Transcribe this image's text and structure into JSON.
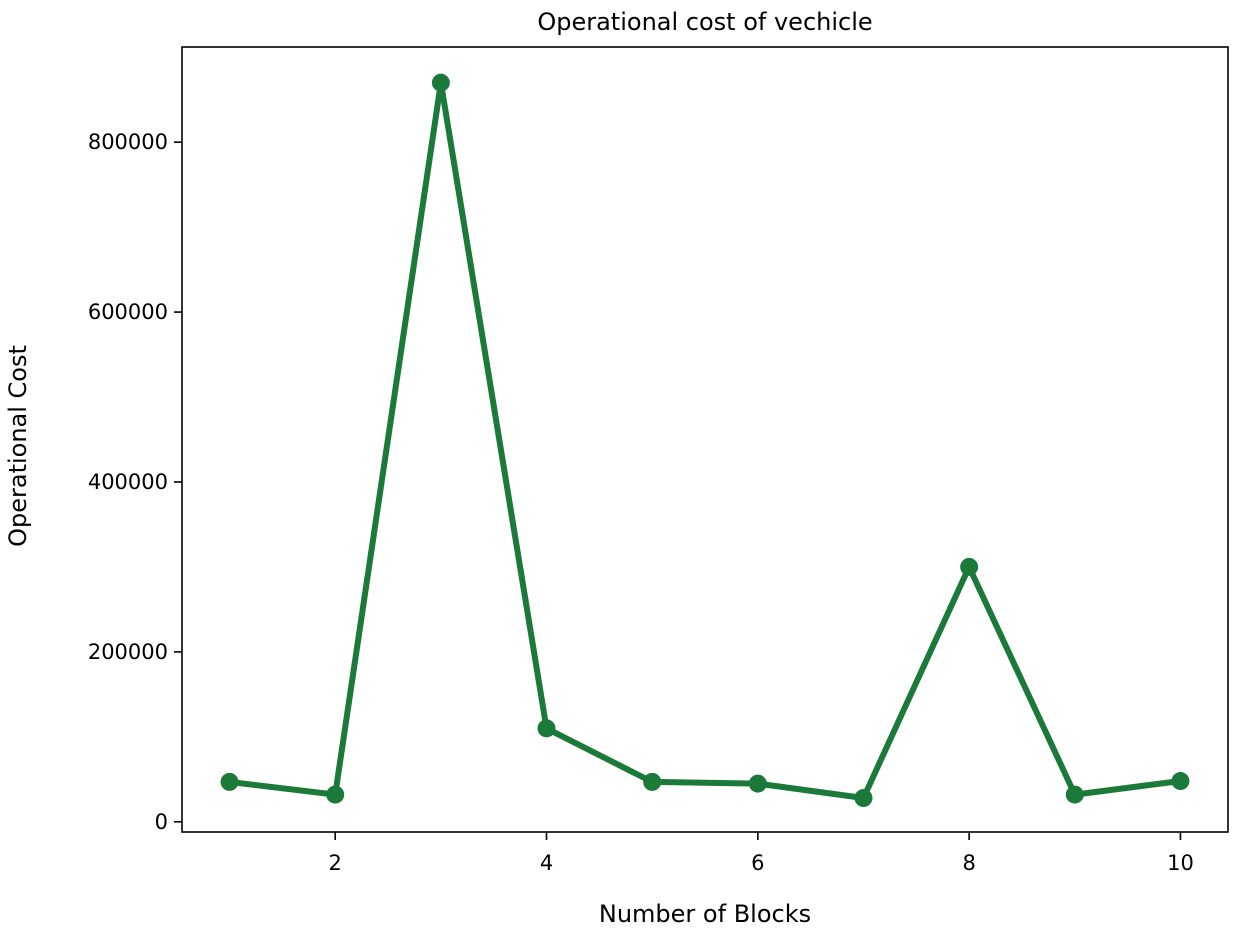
{
  "chart_data": {
    "type": "line",
    "title": "Operational cost of vechicle",
    "xlabel": "Number of Blocks",
    "ylabel": "Operational Cost",
    "xlim": [
      0.55,
      10.45
    ],
    "ylim": [
      -12000,
      912000
    ],
    "xticks": [
      2,
      4,
      6,
      8,
      10
    ],
    "xtick_labels": [
      "2",
      "4",
      "6",
      "8",
      "10"
    ],
    "yticks": [
      0,
      200000,
      400000,
      600000,
      800000
    ],
    "ytick_labels": [
      "0",
      "200000",
      "400000",
      "600000",
      "800000"
    ],
    "grid": false,
    "legend": "none",
    "series": [
      {
        "color": "#1b7a3a",
        "marker": "circle",
        "x": [
          1,
          2,
          3,
          4,
          5,
          6,
          7,
          8,
          9,
          10
        ],
        "y": [
          47000,
          32000,
          870000,
          110000,
          47000,
          45000,
          28000,
          300000,
          32000,
          48000
        ]
      }
    ]
  }
}
